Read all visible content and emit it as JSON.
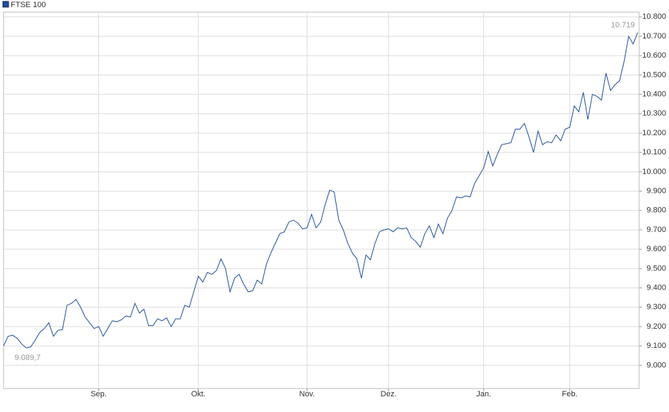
{
  "chart_data": {
    "type": "line",
    "legend": "FTSE 100",
    "categories": [
      null,
      null,
      null,
      null,
      null,
      null,
      null,
      null,
      null,
      null,
      null,
      null,
      null,
      null,
      null,
      null,
      null,
      null,
      null,
      null,
      null,
      "Sep.",
      null,
      null,
      null,
      null,
      null,
      null,
      null,
      null,
      null,
      null,
      null,
      null,
      null,
      null,
      null,
      null,
      null,
      null,
      null,
      null,
      null,
      "Okt.",
      null,
      null,
      null,
      null,
      null,
      null,
      null,
      null,
      null,
      null,
      null,
      null,
      null,
      null,
      null,
      null,
      null,
      null,
      null,
      null,
      null,
      null,
      null,
      "Nov.",
      null,
      null,
      null,
      null,
      null,
      null,
      null,
      null,
      null,
      null,
      null,
      null,
      null,
      null,
      null,
      null,
      null,
      "Dez.",
      null,
      null,
      null,
      null,
      null,
      null,
      null,
      null,
      null,
      null,
      null,
      null,
      null,
      null,
      null,
      null,
      null,
      null,
      null,
      null,
      "Jan.",
      null,
      null,
      null,
      null,
      null,
      null,
      null,
      null,
      null,
      null,
      null,
      null,
      null,
      null,
      null,
      null,
      null,
      null,
      "Feb.",
      null,
      null,
      null,
      null,
      null,
      null,
      null,
      null,
      null,
      null,
      null,
      null,
      null,
      null,
      null
    ],
    "series": [
      {
        "name": "FTSE 100",
        "color": "#1f4e9a",
        "values": [
          9100,
          9150,
          9155,
          9140,
          9110,
          9089.7,
          9095,
          9130,
          9170,
          9190,
          9220,
          9150,
          9180,
          9185,
          9310,
          9320,
          9340,
          9300,
          9250,
          9220,
          9190,
          9200,
          9150,
          9190,
          9230,
          9225,
          9235,
          9255,
          9250,
          9320,
          9270,
          9290,
          9205,
          9205,
          9240,
          9230,
          9245,
          9200,
          9240,
          9240,
          9310,
          9300,
          9380,
          9460,
          9430,
          9480,
          9470,
          9490,
          9550,
          9500,
          9380,
          9450,
          9470,
          9420,
          9380,
          9385,
          9440,
          9420,
          9520,
          9580,
          9630,
          9680,
          9690,
          9740,
          9750,
          9735,
          9705,
          9710,
          9780,
          9710,
          9740,
          9830,
          9905,
          9895,
          9750,
          9700,
          9630,
          9580,
          9550,
          9450,
          9570,
          9545,
          9630,
          9690,
          9700,
          9705,
          9690,
          9710,
          9705,
          9710,
          9660,
          9640,
          9610,
          9680,
          9720,
          9660,
          9730,
          9680,
          9760,
          9800,
          9870,
          9865,
          9875,
          9870,
          9940,
          9980,
          10020,
          10105,
          10030,
          10090,
          10140,
          10145,
          10150,
          10220,
          10220,
          10250,
          10180,
          10100,
          10210,
          10140,
          10155,
          10150,
          10190,
          10160,
          10220,
          10230,
          10340,
          10310,
          10410,
          10270,
          10400,
          10390,
          10370,
          10510,
          10420,
          10450,
          10470,
          10570,
          10700,
          10660,
          10719
        ],
        "value_labels": [
          null,
          null,
          null,
          null,
          null,
          "9.089,7",
          null,
          null,
          null,
          null,
          null,
          null,
          null,
          null,
          null,
          null,
          null,
          null,
          null,
          null,
          null,
          null,
          null,
          null,
          null,
          null,
          null,
          null,
          null,
          null,
          null,
          null,
          null,
          null,
          null,
          null,
          null,
          null,
          null,
          null,
          null,
          null,
          null,
          null,
          null,
          null,
          null,
          null,
          null,
          null,
          null,
          null,
          null,
          null,
          null,
          null,
          null,
          null,
          null,
          null,
          null,
          null,
          null,
          null,
          null,
          null,
          null,
          null,
          null,
          null,
          null,
          null,
          null,
          null,
          null,
          null,
          null,
          null,
          null,
          null,
          null,
          null,
          null,
          null,
          null,
          null,
          null,
          null,
          null,
          null,
          null,
          null,
          null,
          null,
          null,
          null,
          null,
          null,
          null,
          null,
          null,
          null,
          null,
          null,
          null,
          null,
          null,
          null,
          null,
          null,
          null,
          null,
          null,
          null,
          null,
          null,
          null,
          null,
          null,
          null,
          null,
          null,
          null,
          null,
          null,
          null,
          null,
          null,
          null,
          null,
          null,
          null,
          null,
          null,
          null,
          null,
          null,
          null,
          null,
          null,
          "10.719"
        ]
      }
    ],
    "ylim": [
      8880,
      10825
    ],
    "yticks": [
      {
        "value": 9000,
        "label": "9.000"
      },
      {
        "value": 9100,
        "label": "9.100"
      },
      {
        "value": 9200,
        "label": "9.200"
      },
      {
        "value": 9300,
        "label": "9.300"
      },
      {
        "value": 9400,
        "label": "9.400"
      },
      {
        "value": 9500,
        "label": "9.500"
      },
      {
        "value": 9600,
        "label": "9.600"
      },
      {
        "value": 9700,
        "label": "9.700"
      },
      {
        "value": 9800,
        "label": "9.800"
      },
      {
        "value": 9900,
        "label": "9.900"
      },
      {
        "value": 10000,
        "label": "10.000"
      },
      {
        "value": 10100,
        "label": "10.100"
      },
      {
        "value": 10200,
        "label": "10.200"
      },
      {
        "value": 10300,
        "label": "10.300"
      },
      {
        "value": 10400,
        "label": "10.400"
      },
      {
        "value": 10500,
        "label": "10.500"
      },
      {
        "value": 10600,
        "label": "10.600"
      },
      {
        "value": 10700,
        "label": "10.700"
      },
      {
        "value": 10800,
        "label": "10.800"
      }
    ],
    "grid": true
  }
}
